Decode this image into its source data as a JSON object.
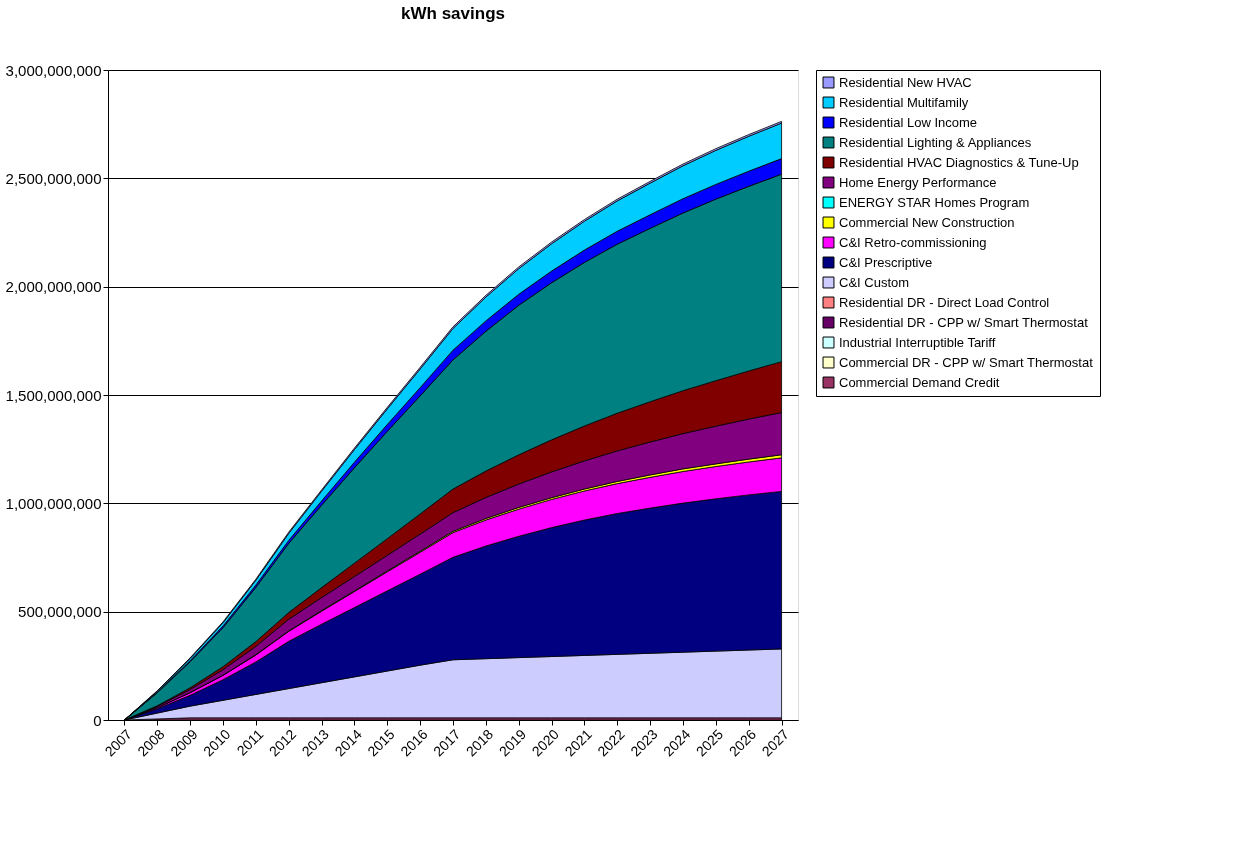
{
  "chart_data": {
    "type": "area",
    "stacked": true,
    "title": "kWh savings",
    "categories": [
      "2007",
      "2008",
      "2009",
      "2010",
      "2011",
      "2012",
      "2013",
      "2014",
      "2015",
      "2016",
      "2017",
      "2018",
      "2019",
      "2020",
      "2021",
      "2022",
      "2023",
      "2024",
      "2025",
      "2026",
      "2027"
    ],
    "ylim": [
      0,
      3000000000
    ],
    "yticks": [
      0,
      {
        "value": 500000000,
        "label": "500,000,000"
      },
      {
        "value": 1000000000,
        "label": "1,000,000,000"
      },
      {
        "value": 1500000000,
        "label": "1,500,000,000"
      },
      {
        "value": 2000000000,
        "label": "2,000,000,000"
      },
      {
        "value": 2500000000,
        "label": "2,500,000,000"
      },
      {
        "value": 3000000000,
        "label": "3,000,000,000"
      }
    ],
    "grid": "y",
    "legend": "right",
    "series": [
      {
        "name": "Commercial Demand Credit",
        "color": "#993366",
        "values": [
          0,
          5000000,
          10000000,
          10000000,
          10000000,
          10000000,
          10000000,
          10000000,
          10000000,
          10000000,
          10000000,
          10000000,
          10000000,
          10000000,
          10000000,
          10000000,
          10000000,
          10000000,
          10000000,
          10000000,
          10000000
        ]
      },
      {
        "name": "Commercial DR - CPP w/ Smart Thermostat",
        "color": "#ffffcc",
        "values": [
          null,
          null,
          null,
          null,
          null,
          null,
          null,
          null,
          null,
          null,
          null,
          null,
          null,
          null,
          null,
          null,
          null,
          null,
          null,
          null,
          null
        ]
      },
      {
        "name": "Industrial Interruptible Tariff",
        "color": "#ccffff",
        "values": [
          null,
          null,
          null,
          null,
          null,
          null,
          null,
          null,
          null,
          null,
          null,
          null,
          null,
          null,
          null,
          null,
          null,
          null,
          null,
          null,
          null
        ]
      },
      {
        "name": "Residential DR - CPP w/ Smart Thermostat",
        "color": "#660066",
        "values": [
          null,
          null,
          null,
          null,
          null,
          null,
          null,
          null,
          null,
          null,
          null,
          null,
          null,
          null,
          null,
          null,
          null,
          null,
          null,
          null,
          null
        ]
      },
      {
        "name": "Residential DR - Direct Load Control",
        "color": "#ff8080",
        "values": [
          null,
          null,
          null,
          null,
          null,
          null,
          null,
          null,
          null,
          null,
          null,
          null,
          null,
          null,
          null,
          null,
          null,
          null,
          null,
          null,
          null
        ]
      },
      {
        "name": "C&I Custom",
        "color": "#ccccff",
        "values": [
          0,
          27000000,
          54000000,
          81000000,
          108000000,
          135000000,
          162000000,
          189000000,
          216000000,
          243000000,
          268000000,
          273000000,
          278000000,
          283000000,
          288000000,
          293000000,
          298000000,
          303000000,
          308000000,
          313000000,
          318000000
        ]
      },
      {
        "name": "C&I Prescriptive",
        "color": "#000080",
        "values": [
          0,
          20000000,
          50000000,
          95000000,
          150000000,
          218000000,
          270000000,
          320000000,
          370000000,
          420000000,
          473000000,
          520000000,
          560000000,
          595000000,
          625000000,
          650000000,
          670000000,
          688000000,
          703000000,
          716000000,
          727000000
        ]
      },
      {
        "name": "C&I Retro-commissioning",
        "color": "#ff00ff",
        "values": [
          0,
          5000000,
          12000000,
          20000000,
          32000000,
          46000000,
          60000000,
          74000000,
          88000000,
          101000000,
          114000000,
          120000000,
          125000000,
          130000000,
          134000000,
          138000000,
          142000000,
          146000000,
          149000000,
          152000000,
          155000000
        ]
      },
      {
        "name": "Commercial New Construction",
        "color": "#ffff00",
        "values": [
          0,
          0,
          1000000,
          1000000,
          2000000,
          2000000,
          3000000,
          3000000,
          4000000,
          5000000,
          6000000,
          7000000,
          8000000,
          8000000,
          9000000,
          10000000,
          11000000,
          12000000,
          12000000,
          13000000,
          14000000
        ]
      },
      {
        "name": "ENERGY STAR Homes Program",
        "color": "#00ffff",
        "values": [
          null,
          null,
          null,
          null,
          null,
          null,
          null,
          null,
          null,
          null,
          null,
          null,
          null,
          null,
          null,
          null,
          null,
          null,
          null,
          null,
          null
        ]
      },
      {
        "name": "Home Energy Performance",
        "color": "#800080",
        "values": [
          0,
          6000000,
          14000000,
          25000000,
          38000000,
          54000000,
          60000000,
          66000000,
          72000000,
          79000000,
          86000000,
          97000000,
          108000000,
          119000000,
          130000000,
          141000000,
          152000000,
          163000000,
          174000000,
          185000000,
          195000000
        ]
      },
      {
        "name": "Residential HVAC Diagnostics & Tune-Up",
        "color": "#800000",
        "values": [
          0,
          3000000,
          8000000,
          14000000,
          22000000,
          31000000,
          46000000,
          62000000,
          77000000,
          93000000,
          109000000,
          122000000,
          135000000,
          148000000,
          161000000,
          174000000,
          186000000,
          198000000,
          210000000,
          222000000,
          235000000
        ]
      },
      {
        "name": "Residential Lighting & Appliances",
        "color": "#008080",
        "values": [
          0,
          60000000,
          120000000,
          180000000,
          250000000,
          319000000,
          380000000,
          440000000,
          495000000,
          545000000,
          596000000,
          645000000,
          690000000,
          725000000,
          755000000,
          780000000,
          800000000,
          820000000,
          838000000,
          852000000,
          865000000
        ]
      },
      {
        "name": "Residential Low Income",
        "color": "#0000ff",
        "values": [
          0,
          2000000,
          5000000,
          8000000,
          11000000,
          14000000,
          20000000,
          26000000,
          32000000,
          38000000,
          45000000,
          48000000,
          51000000,
          54000000,
          57000000,
          60000000,
          63000000,
          66000000,
          68000000,
          70000000,
          72000000
        ]
      },
      {
        "name": "Residential Multifamily",
        "color": "#00ccff",
        "values": [
          0,
          5000000,
          10000000,
          15000000,
          22000000,
          32000000,
          45000000,
          58000000,
          72000000,
          86000000,
          100000000,
          110000000,
          118000000,
          126000000,
          133000000,
          140000000,
          146000000,
          152000000,
          157000000,
          161000000,
          164000000
        ]
      },
      {
        "name": "Residential New HVAC",
        "color": "#9999ff",
        "values": [
          0,
          2000000,
          3000000,
          4000000,
          5000000,
          6000000,
          6000000,
          7000000,
          7000000,
          8000000,
          8000000,
          8000000,
          8000000,
          8000000,
          8000000,
          8000000,
          8000000,
          8000000,
          8000000,
          8000000,
          8000000
        ]
      }
    ]
  }
}
